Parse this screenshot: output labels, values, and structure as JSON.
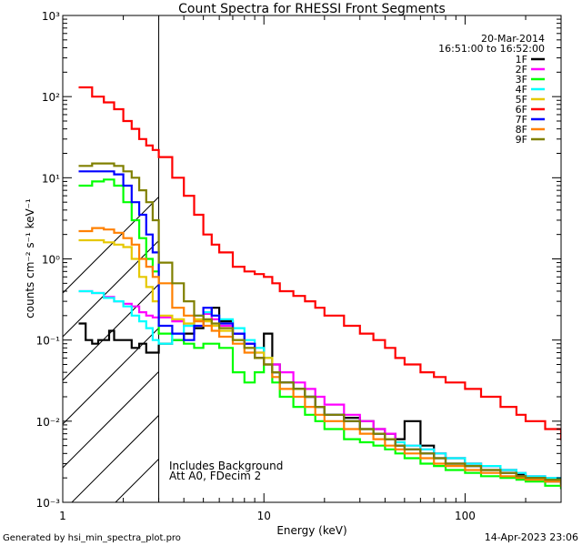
{
  "chart_data": {
    "type": "line",
    "title": "Count Spectra for RHESSI Front Segments",
    "xlabel": "Energy (keV)",
    "ylabel": "counts cm⁻² s⁻¹ keV⁻¹",
    "xscale": "log",
    "yscale": "log",
    "xlim": [
      1,
      300
    ],
    "ylim": [
      0.001,
      1000
    ],
    "x_ticks": [
      {
        "value": 1,
        "label": "1"
      },
      {
        "value": 10,
        "label": "10"
      },
      {
        "value": 100,
        "label": "100"
      }
    ],
    "y_ticks": [
      {
        "value": 1000,
        "label": "10³"
      },
      {
        "value": 100,
        "label": "10²"
      },
      {
        "value": 10,
        "label": "10¹"
      },
      {
        "value": 1,
        "label": "10⁰"
      },
      {
        "value": 0.1,
        "label": "10⁻¹"
      },
      {
        "value": 0.01,
        "label": "10⁻²"
      },
      {
        "value": 0.001,
        "label": "10⁻³"
      }
    ],
    "hatched_region": {
      "x_start": 1,
      "x_end": 3,
      "divider_x": 3
    },
    "date": "20-Mar-2014",
    "time_range": "16:51:00 to 16:52:00",
    "annotations": [
      "Includes Background",
      "Att A0, FDecim 2"
    ],
    "legend_position": "top-right",
    "series": [
      {
        "name": "1F",
        "color": "#000000",
        "x": [
          1.2,
          1.3,
          1.4,
          1.5,
          1.6,
          1.7,
          1.8,
          2.0,
          2.2,
          2.4,
          2.6,
          2.8,
          3.0,
          3.5,
          4.0,
          4.5,
          5.0,
          5.5,
          6.0,
          7.0,
          8.0,
          9.0,
          10,
          11,
          12,
          14,
          16,
          18,
          20,
          25,
          30,
          35,
          40,
          45,
          50,
          60,
          70,
          80,
          100,
          120,
          150,
          180,
          200,
          250,
          300
        ],
        "y": [
          0.16,
          0.1,
          0.09,
          0.1,
          0.1,
          0.13,
          0.1,
          0.1,
          0.08,
          0.09,
          0.07,
          0.07,
          0.09,
          0.1,
          0.12,
          0.14,
          0.22,
          0.25,
          0.17,
          0.12,
          0.09,
          0.06,
          0.12,
          0.05,
          0.03,
          0.025,
          0.02,
          0.015,
          0.012,
          0.011,
          0.01,
          0.008,
          0.007,
          0.006,
          0.01,
          0.005,
          0.004,
          0.0035,
          0.003,
          0.0028,
          0.0025,
          0.0022,
          0.002,
          0.0018,
          0.0015
        ]
      },
      {
        "name": "2F",
        "color": "#ff00ff",
        "x": [
          1.2,
          1.4,
          1.6,
          1.8,
          2.0,
          2.2,
          2.4,
          2.6,
          2.8,
          3.0,
          3.5,
          4.0,
          4.5,
          5.0,
          5.5,
          6.0,
          7.0,
          8.0,
          9.0,
          10,
          11,
          12,
          14,
          16,
          18,
          20,
          25,
          30,
          35,
          40,
          45,
          50,
          60,
          70,
          80,
          100,
          120,
          150,
          180,
          200,
          250,
          300
        ],
        "y": [
          0.4,
          0.38,
          0.34,
          0.3,
          0.28,
          0.26,
          0.22,
          0.2,
          0.19,
          0.19,
          0.17,
          0.15,
          0.2,
          0.21,
          0.18,
          0.15,
          0.12,
          0.09,
          0.07,
          0.06,
          0.05,
          0.04,
          0.03,
          0.025,
          0.02,
          0.016,
          0.012,
          0.01,
          0.008,
          0.007,
          0.005,
          0.005,
          0.0045,
          0.004,
          0.0035,
          0.003,
          0.0028,
          0.0025,
          0.0023,
          0.0021,
          0.002,
          0.0018
        ]
      },
      {
        "name": "3F",
        "color": "#00ff00",
        "x": [
          1.2,
          1.4,
          1.6,
          1.8,
          2.0,
          2.2,
          2.4,
          2.6,
          2.8,
          3.0,
          3.5,
          4.0,
          4.5,
          5.0,
          5.5,
          6.0,
          7.0,
          8.0,
          9.0,
          10,
          11,
          12,
          14,
          16,
          18,
          20,
          25,
          30,
          35,
          40,
          45,
          50,
          60,
          70,
          80,
          100,
          120,
          150,
          180,
          200,
          250,
          300
        ],
        "y": [
          8.0,
          9.0,
          9.5,
          8.0,
          5.0,
          3.0,
          1.8,
          1.0,
          0.7,
          0.12,
          0.1,
          0.09,
          0.08,
          0.09,
          0.09,
          0.08,
          0.04,
          0.03,
          0.04,
          0.06,
          0.03,
          0.02,
          0.015,
          0.012,
          0.01,
          0.008,
          0.006,
          0.0055,
          0.005,
          0.0045,
          0.004,
          0.0035,
          0.003,
          0.0028,
          0.0025,
          0.0023,
          0.0021,
          0.002,
          0.0019,
          0.0018,
          0.0016,
          0.0015
        ]
      },
      {
        "name": "4F",
        "color": "#00ffff",
        "x": [
          1.2,
          1.4,
          1.6,
          1.8,
          2.0,
          2.2,
          2.4,
          2.6,
          2.8,
          3.0,
          3.5,
          4.0,
          4.5,
          5.0,
          5.5,
          6.0,
          7.0,
          8.0,
          9.0,
          10,
          11,
          12,
          14,
          16,
          18,
          20,
          25,
          30,
          35,
          40,
          45,
          50,
          60,
          70,
          80,
          100,
          120,
          150,
          180,
          200,
          250,
          300
        ],
        "y": [
          0.4,
          0.38,
          0.33,
          0.3,
          0.26,
          0.2,
          0.17,
          0.14,
          0.1,
          0.09,
          0.12,
          0.15,
          0.2,
          0.22,
          0.2,
          0.18,
          0.14,
          0.1,
          0.08,
          0.06,
          0.04,
          0.03,
          0.025,
          0.02,
          0.015,
          0.012,
          0.01,
          0.008,
          0.007,
          0.006,
          0.0055,
          0.005,
          0.0045,
          0.004,
          0.0035,
          0.003,
          0.0028,
          0.0025,
          0.0023,
          0.0021,
          0.002,
          0.0018
        ]
      },
      {
        "name": "5F",
        "color": "#e6c800",
        "x": [
          1.2,
          1.4,
          1.6,
          1.8,
          2.0,
          2.2,
          2.4,
          2.6,
          2.8,
          3.0,
          3.5,
          4.0,
          4.5,
          5.0,
          5.5,
          6.0,
          7.0,
          8.0,
          9.0,
          10,
          11,
          12,
          14,
          16,
          18,
          20,
          25,
          30,
          35,
          40,
          45,
          50,
          60,
          70,
          80,
          100,
          120,
          150,
          180,
          200,
          250,
          300
        ],
        "y": [
          1.7,
          1.7,
          1.6,
          1.5,
          1.4,
          1.0,
          0.6,
          0.45,
          0.3,
          0.2,
          0.18,
          0.16,
          0.18,
          0.17,
          0.15,
          0.13,
          0.1,
          0.08,
          0.07,
          0.06,
          0.04,
          0.03,
          0.025,
          0.02,
          0.015,
          0.012,
          0.01,
          0.008,
          0.007,
          0.006,
          0.005,
          0.0045,
          0.004,
          0.0035,
          0.003,
          0.0028,
          0.0025,
          0.0023,
          0.0021,
          0.002,
          0.0019,
          0.0017
        ]
      },
      {
        "name": "6F",
        "color": "#ff0000",
        "x": [
          1.2,
          1.4,
          1.6,
          1.8,
          2.0,
          2.2,
          2.4,
          2.6,
          2.8,
          3.0,
          3.5,
          4.0,
          4.5,
          5.0,
          5.5,
          6.0,
          7.0,
          8.0,
          9.0,
          10,
          11,
          12,
          14,
          16,
          18,
          20,
          25,
          30,
          35,
          40,
          45,
          50,
          60,
          70,
          80,
          100,
          120,
          150,
          180,
          200,
          250,
          300
        ],
        "y": [
          130,
          100,
          85,
          70,
          50,
          40,
          30,
          25,
          22,
          18,
          10,
          6,
          3.5,
          2.0,
          1.5,
          1.2,
          0.8,
          0.7,
          0.65,
          0.6,
          0.5,
          0.4,
          0.35,
          0.3,
          0.25,
          0.2,
          0.15,
          0.12,
          0.1,
          0.08,
          0.06,
          0.05,
          0.04,
          0.035,
          0.03,
          0.025,
          0.02,
          0.015,
          0.012,
          0.01,
          0.008,
          0.006
        ]
      },
      {
        "name": "7F",
        "color": "#0000ff",
        "x": [
          1.2,
          1.4,
          1.6,
          1.8,
          2.0,
          2.2,
          2.4,
          2.6,
          2.8,
          3.0,
          3.5,
          4.0,
          4.5,
          5.0,
          5.5,
          6.0,
          7.0,
          8.0,
          9.0,
          10,
          11,
          12,
          14,
          16,
          18,
          20,
          25,
          30,
          35,
          40,
          45,
          50,
          60,
          70,
          80,
          100,
          120,
          150,
          180,
          200,
          250,
          300
        ],
        "y": [
          12,
          12,
          12,
          11,
          8,
          5,
          3.5,
          2.0,
          1.2,
          0.15,
          0.12,
          0.1,
          0.15,
          0.25,
          0.2,
          0.16,
          0.12,
          0.09,
          0.06,
          0.05,
          0.04,
          0.03,
          0.025,
          0.02,
          0.015,
          0.012,
          0.01,
          0.008,
          0.007,
          0.006,
          0.005,
          0.0045,
          0.004,
          0.0035,
          0.003,
          0.0028,
          0.0025,
          0.0023,
          0.0021,
          0.002,
          0.0019,
          0.0017
        ]
      },
      {
        "name": "8F",
        "color": "#ff8000",
        "x": [
          1.2,
          1.4,
          1.6,
          1.8,
          2.0,
          2.2,
          2.4,
          2.6,
          2.8,
          3.0,
          3.5,
          4.0,
          4.5,
          5.0,
          5.5,
          6.0,
          7.0,
          8.0,
          9.0,
          10,
          11,
          12,
          14,
          16,
          18,
          20,
          25,
          30,
          35,
          40,
          45,
          50,
          60,
          70,
          80,
          100,
          120,
          150,
          180,
          200,
          250,
          300
        ],
        "y": [
          2.2,
          2.4,
          2.3,
          2.1,
          1.8,
          1.5,
          1.0,
          0.8,
          0.6,
          0.5,
          0.25,
          0.2,
          0.17,
          0.15,
          0.13,
          0.11,
          0.09,
          0.07,
          0.06,
          0.05,
          0.035,
          0.025,
          0.02,
          0.015,
          0.012,
          0.01,
          0.008,
          0.007,
          0.006,
          0.005,
          0.0045,
          0.004,
          0.0035,
          0.003,
          0.0028,
          0.0025,
          0.0023,
          0.0021,
          0.002,
          0.0019,
          0.0018,
          0.0016
        ]
      },
      {
        "name": "9F",
        "color": "#808000",
        "x": [
          1.2,
          1.4,
          1.6,
          1.8,
          2.0,
          2.2,
          2.4,
          2.6,
          2.8,
          3.0,
          3.5,
          4.0,
          4.5,
          5.0,
          5.5,
          6.0,
          7.0,
          8.0,
          9.0,
          10,
          11,
          12,
          14,
          16,
          18,
          20,
          25,
          30,
          35,
          40,
          45,
          50,
          60,
          70,
          80,
          100,
          120,
          150,
          180,
          200,
          250,
          300
        ],
        "y": [
          14,
          15,
          15,
          14,
          12,
          10,
          7,
          5,
          3,
          0.9,
          0.5,
          0.3,
          0.2,
          0.18,
          0.16,
          0.14,
          0.1,
          0.08,
          0.06,
          0.05,
          0.04,
          0.03,
          0.025,
          0.02,
          0.015,
          0.012,
          0.01,
          0.008,
          0.007,
          0.006,
          0.005,
          0.0045,
          0.004,
          0.0035,
          0.003,
          0.0028,
          0.0025,
          0.0023,
          0.0021,
          0.002,
          0.0019,
          0.0017
        ]
      }
    ]
  },
  "footer": {
    "generated_by": "Generated by hsi_min_spectra_plot.pro",
    "timestamp": "14-Apr-2023 23:06"
  }
}
